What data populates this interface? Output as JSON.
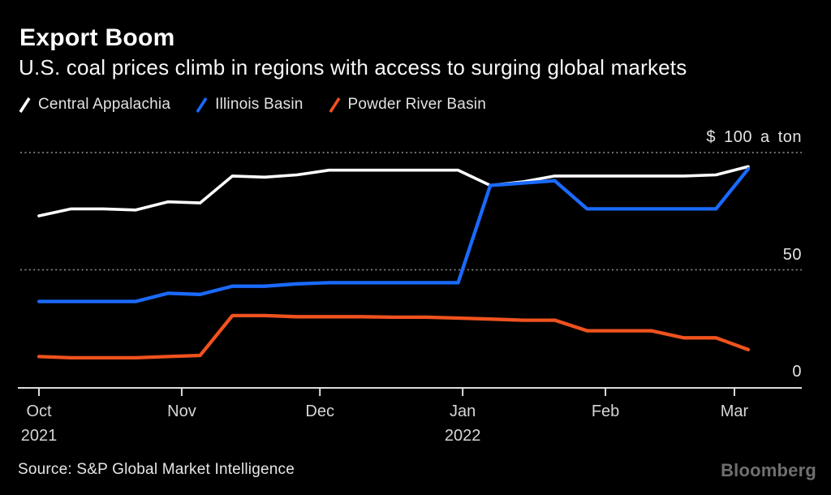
{
  "header": {
    "title": "Export Boom",
    "subtitle": "U.S. coal prices climb in regions with access to surging global markets"
  },
  "footer": {
    "source": "Source: S&P Global Market Intelligence",
    "brand": "Bloomberg"
  },
  "colors": {
    "background": "#000000",
    "title_text": "#ffffff",
    "axis_text": "#d6d6d6",
    "grid": "#969696",
    "axis_line": "#dcdcdc",
    "brand_text": "#6f6f6f"
  },
  "chart_data": {
    "type": "line",
    "title": "Export Boom",
    "subtitle": "U.S. coal prices climb in regions with access to surging global markets",
    "unit": "$ per short ton",
    "ylim": [
      0,
      100
    ],
    "grid": "dotted horizontal lines at 50 and 100",
    "legend_position": "top",
    "x_days": [
      0,
      7,
      14,
      21,
      28,
      35,
      42,
      49,
      56,
      63,
      70,
      77,
      84,
      91,
      98,
      105,
      112,
      119,
      126,
      133,
      140,
      147,
      154
    ],
    "dates": [
      "Oct 1",
      "Oct 8",
      "Oct 15",
      "Oct 22",
      "Oct 29",
      "Nov 5",
      "Nov 12",
      "Nov 19",
      "Nov 26",
      "Dec 3",
      "Dec 10",
      "Dec 17",
      "Dec 24",
      "Dec 31",
      "Jan 7",
      "Jan 14",
      "Jan 21",
      "Jan 28",
      "Feb 4",
      "Feb 11",
      "Feb 18",
      "Feb 25",
      "Mar 4"
    ],
    "series": [
      {
        "name": "Central Appalachia",
        "color": "#ffffff",
        "values": [
          73,
          76,
          76,
          75.5,
          79,
          78.5,
          90,
          89.5,
          90.5,
          92.5,
          92.5,
          92.5,
          92.5,
          92.5,
          86,
          87.5,
          90,
          90,
          90,
          90,
          90,
          90.5,
          94
        ]
      },
      {
        "name": "Illinois Basin",
        "color": "#1a6aff",
        "values": [
          36.5,
          36.5,
          36.5,
          36.5,
          40,
          39.5,
          43,
          43,
          44,
          44.5,
          44.5,
          44.5,
          44.5,
          44.5,
          86,
          87,
          88,
          76,
          76,
          76,
          76,
          76,
          93
        ]
      },
      {
        "name": "Powder River Basin",
        "color": "#f0521e",
        "values": [
          13,
          12.5,
          12.5,
          12.5,
          13,
          13.5,
          30.5,
          30.5,
          30,
          30,
          30,
          29.8,
          29.8,
          29.4,
          29,
          28.5,
          28.5,
          24,
          24,
          24,
          21,
          21,
          16
        ]
      }
    ],
    "yticks": [
      {
        "value": 100,
        "label": "$ 100 a ton",
        "grid": true
      },
      {
        "value": 50,
        "label": "50",
        "grid": true
      },
      {
        "value": 0,
        "label": "0",
        "grid": false
      }
    ],
    "xticks": [
      {
        "label": "Oct",
        "sublabel": "2021",
        "day": 0
      },
      {
        "label": "Nov",
        "sublabel": "",
        "day": 31
      },
      {
        "label": "Dec",
        "sublabel": "",
        "day": 61
      },
      {
        "label": "Jan",
        "sublabel": "2022",
        "day": 92
      },
      {
        "label": "Feb",
        "sublabel": "",
        "day": 123
      },
      {
        "label": "Mar",
        "sublabel": "",
        "day": 151
      }
    ]
  }
}
